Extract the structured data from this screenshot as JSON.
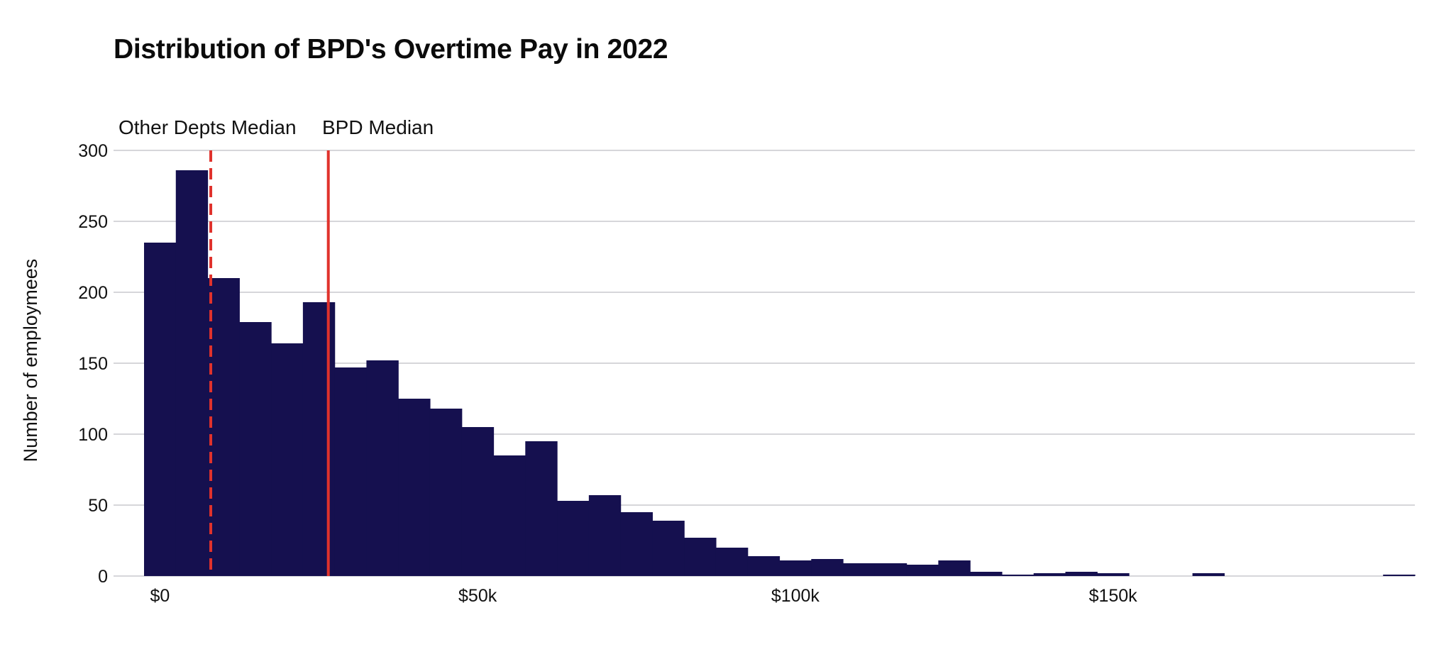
{
  "chart_data": {
    "type": "bar",
    "title": "Distribution of BPD's Overtime Pay in 2022",
    "xlabel": "",
    "ylabel": "Number of employmees",
    "ylim": [
      0,
      300
    ],
    "yticks": [
      0,
      50,
      100,
      150,
      200,
      250,
      300
    ],
    "xlim": [
      -2500,
      197500
    ],
    "xticks": [
      {
        "value": 0,
        "label": "$0"
      },
      {
        "value": 50000,
        "label": "$50k"
      },
      {
        "value": 100000,
        "label": "$100k"
      },
      {
        "value": 150000,
        "label": "$150k"
      }
    ],
    "bin_width": 5000,
    "bins": [
      {
        "x0": -2500,
        "count": 235
      },
      {
        "x0": 2500,
        "count": 286
      },
      {
        "x0": 7500,
        "count": 210
      },
      {
        "x0": 12500,
        "count": 179
      },
      {
        "x0": 17500,
        "count": 164
      },
      {
        "x0": 22500,
        "count": 193
      },
      {
        "x0": 27500,
        "count": 147
      },
      {
        "x0": 32500,
        "count": 152
      },
      {
        "x0": 37500,
        "count": 125
      },
      {
        "x0": 42500,
        "count": 118
      },
      {
        "x0": 47500,
        "count": 105
      },
      {
        "x0": 52500,
        "count": 85
      },
      {
        "x0": 57500,
        "count": 95
      },
      {
        "x0": 62500,
        "count": 53
      },
      {
        "x0": 67500,
        "count": 57
      },
      {
        "x0": 72500,
        "count": 45
      },
      {
        "x0": 77500,
        "count": 39
      },
      {
        "x0": 82500,
        "count": 27
      },
      {
        "x0": 87500,
        "count": 20
      },
      {
        "x0": 92500,
        "count": 14
      },
      {
        "x0": 97500,
        "count": 11
      },
      {
        "x0": 102500,
        "count": 12
      },
      {
        "x0": 107500,
        "count": 9
      },
      {
        "x0": 112500,
        "count": 9
      },
      {
        "x0": 117500,
        "count": 8
      },
      {
        "x0": 122500,
        "count": 11
      },
      {
        "x0": 127500,
        "count": 3
      },
      {
        "x0": 132500,
        "count": 1
      },
      {
        "x0": 137500,
        "count": 2
      },
      {
        "x0": 142500,
        "count": 3
      },
      {
        "x0": 147500,
        "count": 2
      },
      {
        "x0": 162500,
        "count": 2
      },
      {
        "x0": 192500,
        "count": 1
      }
    ],
    "annotations": [
      {
        "label": "Other Depts Median",
        "x": 8000,
        "style": "dashed"
      },
      {
        "label": "BPD Median",
        "x": 26500,
        "style": "solid"
      }
    ],
    "bar_color": "#15104f",
    "median_line_color": "#e0322c",
    "grid_color": "#c8c8ce",
    "grid": true
  }
}
